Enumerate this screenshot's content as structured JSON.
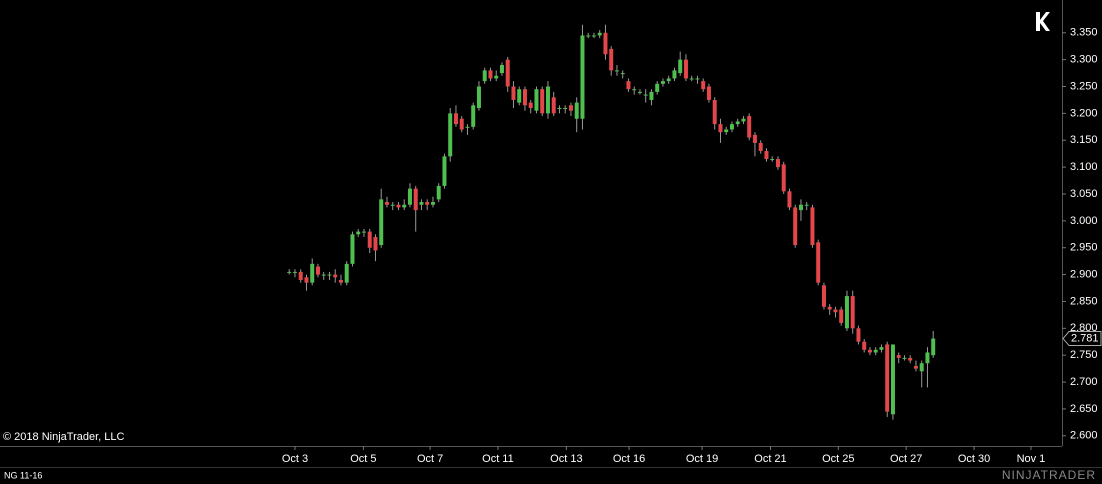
{
  "chart_data": {
    "type": "candlestick",
    "instrument": "NG 11-16",
    "copyright": "© 2018 NinjaTrader, LLC",
    "brand": "NINJATRADER",
    "up_color": "#4fbf4f",
    "down_color": "#e3474a",
    "wick_color": "#9a9a9a",
    "last_price_label": "2.781",
    "xlim": [
      -50.3,
      134.4
    ],
    "xticks": [
      {
        "value": 1,
        "label": "Oct 3"
      },
      {
        "value": 12.9,
        "label": "Oct 5"
      },
      {
        "value": 24.5,
        "label": "Oct 7"
      },
      {
        "value": 36.3,
        "label": "Oct 11"
      },
      {
        "value": 48.2,
        "label": "Oct 13"
      },
      {
        "value": 59.1,
        "label": "Oct 16"
      },
      {
        "value": 71.8,
        "label": "Oct 19"
      },
      {
        "value": 83.7,
        "label": "Oct 21"
      },
      {
        "value": 95.5,
        "label": "Oct 25"
      },
      {
        "value": 107.3,
        "label": "Oct 27"
      },
      {
        "value": 119.1,
        "label": "Oct 30"
      },
      {
        "value": 129,
        "label": "Nov 1"
      }
    ],
    "ylim": [
      2.581,
      3.411
    ],
    "yticks": [
      {
        "value": 2.6,
        "label": "2.600"
      },
      {
        "value": 2.65,
        "label": "2.650"
      },
      {
        "value": 2.7,
        "label": "2.700"
      },
      {
        "value": 2.75,
        "label": "2.750"
      },
      {
        "value": 2.8,
        "label": "2.800"
      },
      {
        "value": 2.85,
        "label": "2.850"
      },
      {
        "value": 2.9,
        "label": "2.900"
      },
      {
        "value": 2.95,
        "label": "2.950"
      },
      {
        "value": 3.0,
        "label": "3.000"
      },
      {
        "value": 3.05,
        "label": "3.050"
      },
      {
        "value": 3.1,
        "label": "3.100"
      },
      {
        "value": 3.15,
        "label": "3.150"
      },
      {
        "value": 3.2,
        "label": "3.200"
      },
      {
        "value": 3.25,
        "label": "3.250"
      },
      {
        "value": 3.3,
        "label": "3.300"
      },
      {
        "value": 3.35,
        "label": "3.350"
      }
    ],
    "ohlc": [
      [
        2.905,
        2.91,
        2.9,
        2.905
      ],
      [
        2.905,
        2.91,
        2.895,
        2.905
      ],
      [
        2.905,
        2.91,
        2.885,
        2.89
      ],
      [
        2.895,
        2.9,
        2.87,
        2.885
      ],
      [
        2.885,
        2.93,
        2.88,
        2.92
      ],
      [
        2.915,
        2.92,
        2.895,
        2.9
      ],
      [
        2.9,
        2.905,
        2.89,
        2.9
      ],
      [
        2.9,
        2.905,
        2.89,
        2.9
      ],
      [
        2.9,
        2.91,
        2.885,
        2.895
      ],
      [
        2.89,
        2.9,
        2.88,
        2.885
      ],
      [
        2.885,
        2.925,
        2.88,
        2.92
      ],
      [
        2.92,
        2.98,
        2.915,
        2.975
      ],
      [
        2.975,
        2.985,
        2.97,
        2.98
      ],
      [
        2.98,
        2.985,
        2.97,
        2.98
      ],
      [
        2.98,
        2.985,
        2.94,
        2.95
      ],
      [
        2.97,
        2.975,
        2.925,
        2.945
      ],
      [
        2.955,
        3.06,
        2.95,
        3.04
      ],
      [
        3.035,
        3.045,
        3.025,
        3.03
      ],
      [
        3.03,
        3.035,
        3.02,
        3.03
      ],
      [
        3.03,
        3.035,
        3.02,
        3.025
      ],
      [
        3.025,
        3.04,
        3.02,
        3.03
      ],
      [
        3.03,
        3.07,
        3.025,
        3.06
      ],
      [
        3.06,
        3.065,
        2.98,
        3.02
      ],
      [
        3.03,
        3.04,
        3.02,
        3.035
      ],
      [
        3.035,
        3.04,
        3.02,
        3.03
      ],
      [
        3.03,
        3.045,
        3.025,
        3.035
      ],
      [
        3.04,
        3.07,
        3.035,
        3.065
      ],
      [
        3.065,
        3.125,
        3.06,
        3.12
      ],
      [
        3.12,
        3.21,
        3.11,
        3.2
      ],
      [
        3.2,
        3.215,
        3.175,
        3.18
      ],
      [
        3.19,
        3.195,
        3.165,
        3.17
      ],
      [
        3.175,
        3.18,
        3.16,
        3.175
      ],
      [
        3.175,
        3.22,
        3.17,
        3.215
      ],
      [
        3.21,
        3.26,
        3.205,
        3.25
      ],
      [
        3.26,
        3.285,
        3.255,
        3.28
      ],
      [
        3.28,
        3.285,
        3.26,
        3.265
      ],
      [
        3.265,
        3.28,
        3.26,
        3.27
      ],
      [
        3.275,
        3.295,
        3.27,
        3.29
      ],
      [
        3.3,
        3.305,
        3.24,
        3.25
      ],
      [
        3.25,
        3.26,
        3.21,
        3.225
      ],
      [
        3.22,
        3.25,
        3.215,
        3.245
      ],
      [
        3.245,
        3.25,
        3.205,
        3.215
      ],
      [
        3.22,
        3.225,
        3.2,
        3.21
      ],
      [
        3.205,
        3.25,
        3.2,
        3.245
      ],
      [
        3.245,
        3.25,
        3.195,
        3.2
      ],
      [
        3.2,
        3.26,
        3.19,
        3.25
      ],
      [
        3.23,
        3.24,
        3.195,
        3.2
      ],
      [
        3.21,
        3.215,
        3.2,
        3.21
      ],
      [
        3.21,
        3.215,
        3.2,
        3.21
      ],
      [
        3.215,
        3.22,
        3.195,
        3.205
      ],
      [
        3.19,
        3.23,
        3.165,
        3.22
      ],
      [
        3.19,
        3.365,
        3.17,
        3.345
      ],
      [
        3.345,
        3.35,
        3.34,
        3.345
      ],
      [
        3.345,
        3.35,
        3.34,
        3.345
      ],
      [
        3.345,
        3.355,
        3.34,
        3.35
      ],
      [
        3.35,
        3.365,
        3.3,
        3.31
      ],
      [
        3.32,
        3.325,
        3.27,
        3.28
      ],
      [
        3.28,
        3.29,
        3.27,
        3.28
      ],
      [
        3.275,
        3.28,
        3.265,
        3.275
      ],
      [
        3.26,
        3.265,
        3.24,
        3.245
      ],
      [
        3.245,
        3.25,
        3.235,
        3.245
      ],
      [
        3.24,
        3.245,
        3.235,
        3.24
      ],
      [
        3.235,
        3.245,
        3.22,
        3.235
      ],
      [
        3.225,
        3.245,
        3.215,
        3.24
      ],
      [
        3.24,
        3.26,
        3.235,
        3.255
      ],
      [
        3.255,
        3.265,
        3.25,
        3.26
      ],
      [
        3.26,
        3.27,
        3.255,
        3.265
      ],
      [
        3.265,
        3.285,
        3.26,
        3.28
      ],
      [
        3.275,
        3.315,
        3.27,
        3.3
      ],
      [
        3.3,
        3.31,
        3.26,
        3.265
      ],
      [
        3.265,
        3.27,
        3.26,
        3.265
      ],
      [
        3.265,
        3.27,
        3.255,
        3.265
      ],
      [
        3.26,
        3.265,
        3.24,
        3.245
      ],
      [
        3.25,
        3.255,
        3.22,
        3.225
      ],
      [
        3.225,
        3.23,
        3.17,
        3.18
      ],
      [
        3.18,
        3.19,
        3.145,
        3.165
      ],
      [
        3.165,
        3.175,
        3.16,
        3.17
      ],
      [
        3.17,
        3.185,
        3.165,
        3.18
      ],
      [
        3.18,
        3.19,
        3.175,
        3.185
      ],
      [
        3.185,
        3.195,
        3.18,
        3.19
      ],
      [
        3.195,
        3.2,
        3.15,
        3.155
      ],
      [
        3.16,
        3.165,
        3.12,
        3.145
      ],
      [
        3.145,
        3.15,
        3.125,
        3.13
      ],
      [
        3.13,
        3.135,
        3.11,
        3.115
      ],
      [
        3.115,
        3.12,
        3.11,
        3.115
      ],
      [
        3.115,
        3.12,
        3.095,
        3.1
      ],
      [
        3.105,
        3.11,
        3.05,
        3.055
      ],
      [
        3.055,
        3.06,
        3.02,
        3.025
      ],
      [
        3.025,
        3.03,
        2.95,
        2.955
      ],
      [
        3.02,
        3.04,
        3.0,
        3.03
      ],
      [
        3.03,
        3.035,
        3.02,
        3.03
      ],
      [
        3.025,
        3.03,
        2.95,
        2.955
      ],
      [
        2.96,
        2.965,
        2.88,
        2.885
      ],
      [
        2.88,
        2.885,
        2.835,
        2.84
      ],
      [
        2.84,
        2.845,
        2.825,
        2.835
      ],
      [
        2.835,
        2.84,
        2.82,
        2.83
      ],
      [
        2.835,
        2.84,
        2.805,
        2.81
      ],
      [
        2.8,
        2.87,
        2.795,
        2.86
      ],
      [
        2.86,
        2.87,
        2.79,
        2.8
      ],
      [
        2.8,
        2.805,
        2.77,
        2.775
      ],
      [
        2.775,
        2.78,
        2.755,
        2.76
      ],
      [
        2.76,
        2.765,
        2.75,
        2.755
      ],
      [
        2.755,
        2.765,
        2.75,
        2.76
      ],
      [
        2.76,
        2.77,
        2.755,
        2.765
      ],
      [
        2.77,
        2.775,
        2.635,
        2.645
      ],
      [
        2.64,
        2.77,
        2.63,
        2.77
      ],
      [
        2.75,
        2.755,
        2.735,
        2.745
      ],
      [
        2.745,
        2.75,
        2.74,
        2.745
      ],
      [
        2.745,
        2.75,
        2.735,
        2.74
      ],
      [
        2.73,
        2.74,
        2.72,
        2.725
      ],
      [
        2.72,
        2.74,
        2.69,
        2.735
      ],
      [
        2.735,
        2.765,
        2.69,
        2.755
      ],
      [
        2.75,
        2.795,
        2.745,
        2.781
      ]
    ]
  }
}
